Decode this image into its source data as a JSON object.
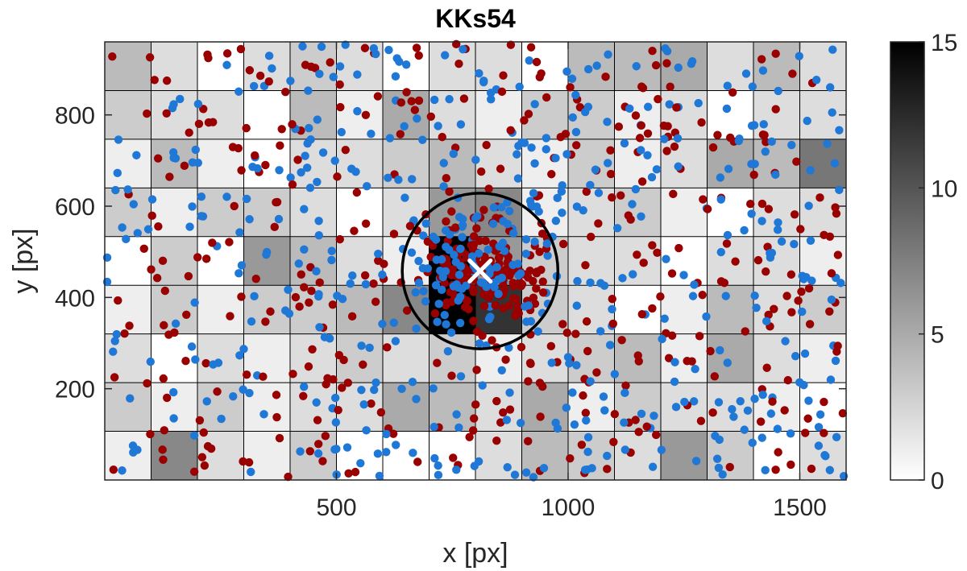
{
  "chart_data": {
    "type": "heatmap",
    "title": "KKs54",
    "xlabel": "x [px]",
    "ylabel": "y [px]",
    "xlim": [
      0,
      1600
    ],
    "ylim": [
      0,
      960
    ],
    "xticks": [
      500,
      1000,
      1500
    ],
    "yticks": [
      200,
      400,
      600,
      800
    ],
    "grid": {
      "cols": 16,
      "rows": 9,
      "row_order": "top-to-bottom",
      "counts": [
        [
          4,
          2,
          0,
          2,
          3,
          2,
          0,
          2,
          2,
          0,
          4,
          4,
          5,
          2,
          4,
          2
        ],
        [
          3,
          2,
          2,
          0,
          4,
          1,
          5,
          2,
          1,
          3,
          3,
          1,
          2,
          0,
          2,
          2
        ],
        [
          1,
          4,
          1,
          0,
          2,
          2,
          3,
          4,
          2,
          1,
          3,
          1,
          2,
          5,
          4,
          8
        ],
        [
          3,
          1,
          3,
          3,
          2,
          0,
          2,
          6,
          7,
          1,
          2,
          3,
          1,
          0,
          2,
          2
        ],
        [
          0,
          3,
          0,
          6,
          4,
          2,
          1,
          15,
          6,
          3,
          2,
          2,
          0,
          2,
          2,
          1
        ],
        [
          1,
          3,
          1,
          3,
          3,
          4,
          7,
          15,
          12,
          3,
          2,
          0,
          1,
          4,
          2,
          3
        ],
        [
          2,
          0,
          2,
          1,
          2,
          3,
          2,
          3,
          1,
          2,
          3,
          4,
          1,
          5,
          2,
          1
        ],
        [
          3,
          1,
          3,
          1,
          2,
          2,
          5,
          4,
          2,
          5,
          1,
          3,
          2,
          2,
          1,
          0
        ],
        [
          1,
          7,
          2,
          1,
          3,
          0,
          0,
          0,
          2,
          4,
          3,
          2,
          6,
          3,
          0,
          2
        ]
      ]
    },
    "colorbar": {
      "min": 0,
      "max": 15,
      "ticks": [
        0,
        5,
        10,
        15
      ],
      "colormap": "gray-reversed"
    },
    "marker": {
      "symbol": "x",
      "x": 810,
      "y": 458,
      "color": "#ffffff"
    },
    "circle": {
      "cx": 810,
      "cy": 458,
      "r": 168,
      "color": "#000000"
    },
    "series": [
      {
        "name": "blue points",
        "color": "#1f77d6",
        "count": 470,
        "seed": 12345
      },
      {
        "name": "red points",
        "color": "#990000",
        "count": 400,
        "seed": 67890
      }
    ],
    "cluster_series": [
      {
        "name": "red points (cluster)",
        "color": "#990000",
        "count": 170,
        "cx": 815,
        "cy": 460,
        "sx": 60,
        "sy": 50,
        "seed": 222
      },
      {
        "name": "blue points (cluster)",
        "color": "#1f77d6",
        "count": 80,
        "cx": 815,
        "cy": 490,
        "sx": 75,
        "sy": 70,
        "seed": 333
      }
    ]
  }
}
